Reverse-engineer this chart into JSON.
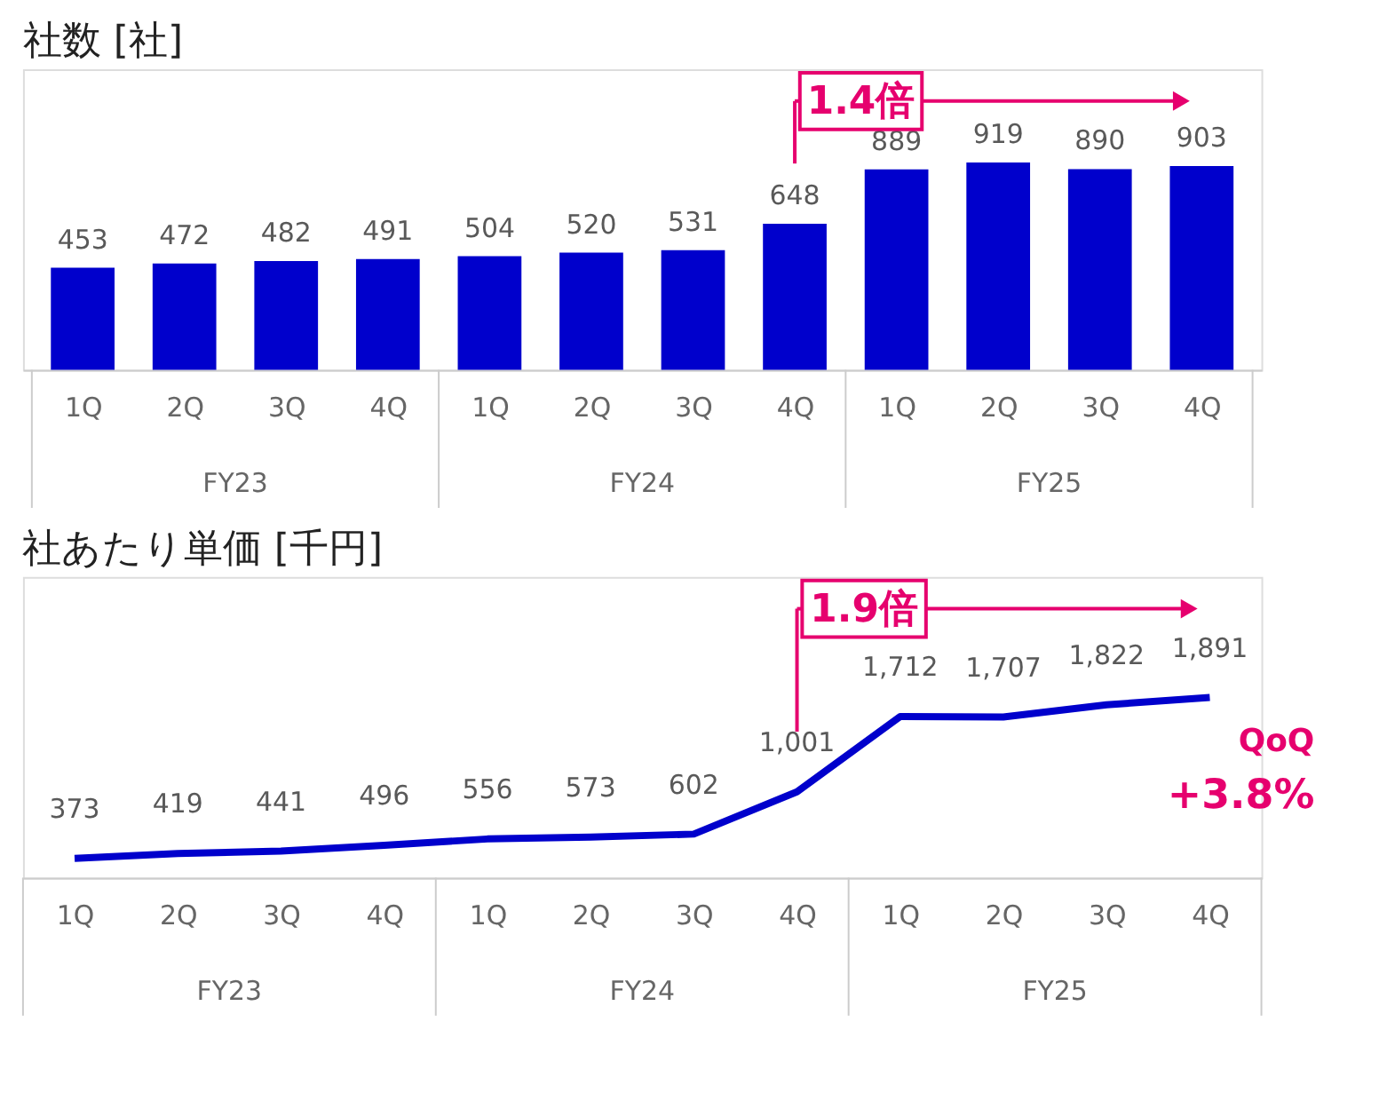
{
  "chart_data": [
    {
      "type": "bar",
      "title": "社数 [社]",
      "categories": [
        "1Q",
        "2Q",
        "3Q",
        "4Q",
        "1Q",
        "2Q",
        "3Q",
        "4Q",
        "1Q",
        "2Q",
        "3Q",
        "4Q"
      ],
      "values": [
        453,
        472,
        482,
        491,
        504,
        520,
        531,
        648,
        889,
        919,
        890,
        903
      ],
      "color": "#0000cc",
      "data_labels": true,
      "grid": false,
      "annotations": [
        "1.4倍",
        "FY23",
        "FY24",
        "FY25"
      ]
    },
    {
      "type": "line",
      "title": "社あたり単価 [千円]",
      "categories": [
        "1Q",
        "2Q",
        "3Q",
        "4Q",
        "1Q",
        "2Q",
        "3Q",
        "4Q",
        "1Q",
        "2Q",
        "3Q",
        "4Q"
      ],
      "values": [
        373,
        419,
        441,
        496,
        556,
        573,
        602,
        1001,
        1712,
        1707,
        1822,
        1891
      ],
      "color": "#0000cc",
      "value_labels": [
        "373",
        "419",
        "441",
        "496",
        "556",
        "573",
        "602",
        "1,001",
        "1,712",
        "1,707",
        "1,822",
        "1,891"
      ],
      "grid": false,
      "marker": "none",
      "line_style": "solid",
      "annotations": [
        "1.9倍",
        "FY23",
        "FY24",
        "FY25",
        "QoQ",
        "+3.8%"
      ]
    }
  ]
}
